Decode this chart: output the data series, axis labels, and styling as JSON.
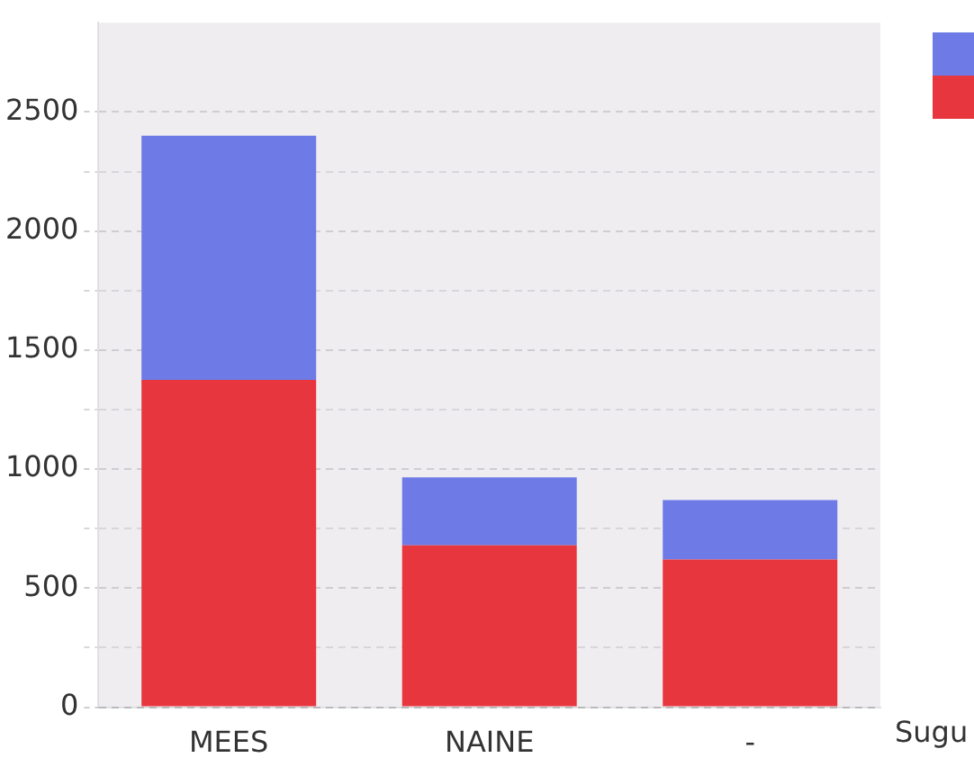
{
  "chart_data": {
    "type": "bar",
    "stacked": true,
    "xlabel": "Sugu",
    "categories": [
      "MEES",
      "NAINE",
      "-"
    ],
    "series": [
      {
        "color": "#e8363e",
        "values": [
          1375,
          680,
          620
        ]
      },
      {
        "color": "#6e7be6",
        "values": [
          1025,
          285,
          250
        ]
      }
    ],
    "ylim": [
      0,
      2875
    ],
    "yticks": [
      0,
      {
        "value": 250,
        "label": null
      },
      500,
      {
        "value": 750,
        "label": null
      },
      1000,
      {
        "value": 1250,
        "label": null
      },
      1500,
      {
        "value": 1750,
        "label": null
      },
      2000,
      {
        "value": 2250,
        "label": null
      },
      2500
    ],
    "grid": "y"
  }
}
